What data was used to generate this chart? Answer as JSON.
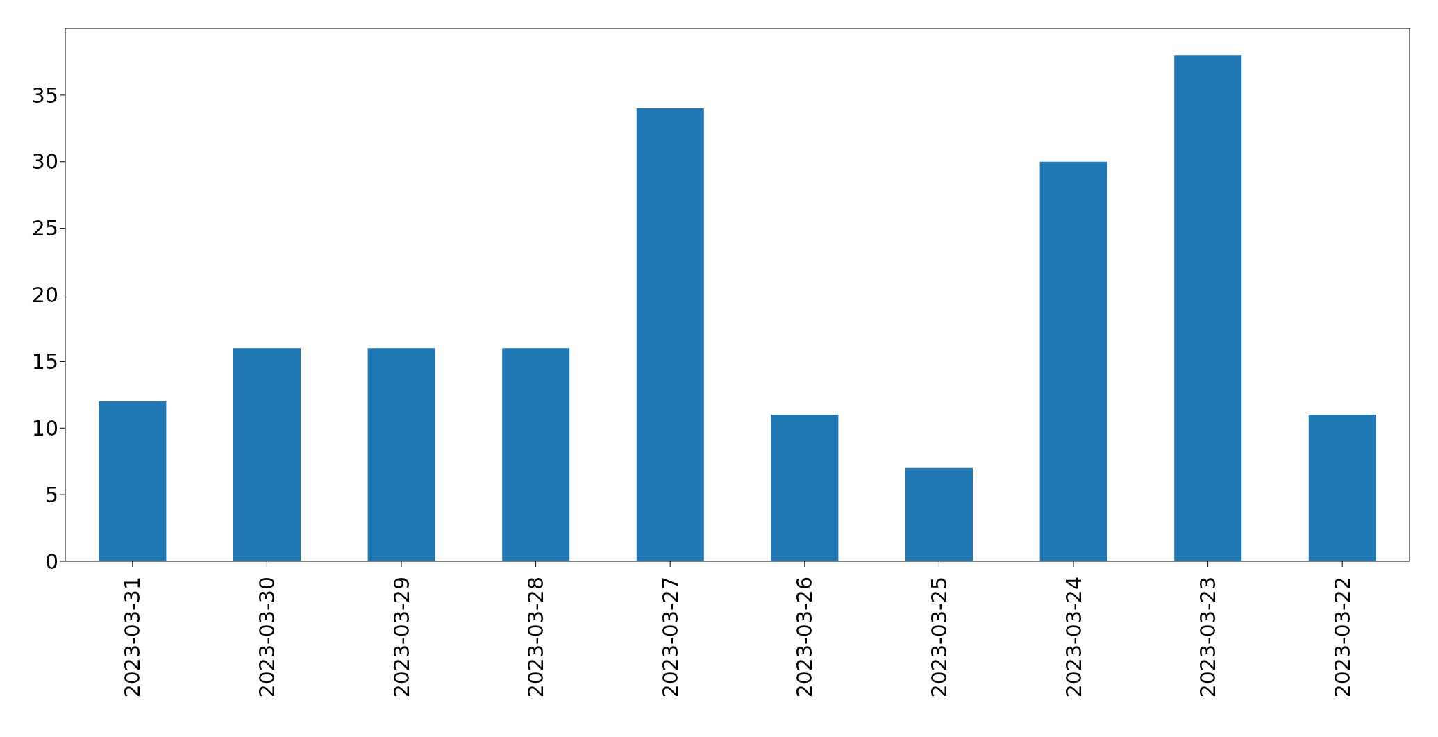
{
  "chart_data": {
    "type": "bar",
    "categories": [
      "2023-03-31",
      "2023-03-30",
      "2023-03-29",
      "2023-03-28",
      "2023-03-27",
      "2023-03-26",
      "2023-03-25",
      "2023-03-24",
      "2023-03-23",
      "2023-03-22"
    ],
    "values": [
      12,
      16,
      16,
      16,
      34,
      11,
      7,
      30,
      38,
      11
    ],
    "color": "#1f77b4",
    "ylim": [
      0,
      40
    ],
    "yticks": [
      0,
      5,
      10,
      15,
      20,
      25,
      30,
      35
    ],
    "grid": false
  }
}
